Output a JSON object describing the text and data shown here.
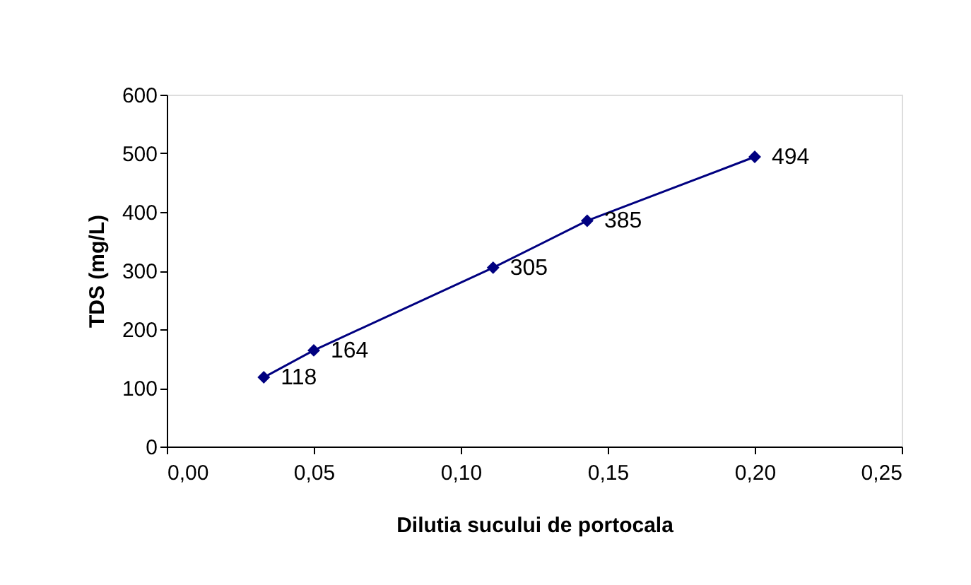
{
  "chart_data": {
    "type": "line",
    "xlabel": "Dilutia sucului de portocala",
    "ylabel": "TDS (mg/L)",
    "x": [
      0.033,
      0.05,
      0.111,
      0.143,
      0.2
    ],
    "series": [
      {
        "color": "#000080",
        "values": [
          118,
          164,
          305,
          385,
          494
        ]
      }
    ],
    "xlim": [
      0,
      0.25
    ],
    "xticks": [
      {
        "value": 0,
        "label": "0,00"
      },
      {
        "value": 0.05,
        "label": "0,05"
      },
      {
        "value": 0.1,
        "label": "0,10"
      },
      {
        "value": 0.15,
        "label": "0,15"
      },
      {
        "value": 0.2,
        "label": "0,20"
      },
      {
        "value": 0.25,
        "label": "0,25"
      }
    ],
    "ylim": [
      0,
      600
    ],
    "yticks": [
      0,
      100,
      200,
      300,
      400,
      500,
      600
    ],
    "marker": "diamond",
    "line_style": "solid",
    "data_labels": true,
    "grid": false,
    "legend": false
  }
}
